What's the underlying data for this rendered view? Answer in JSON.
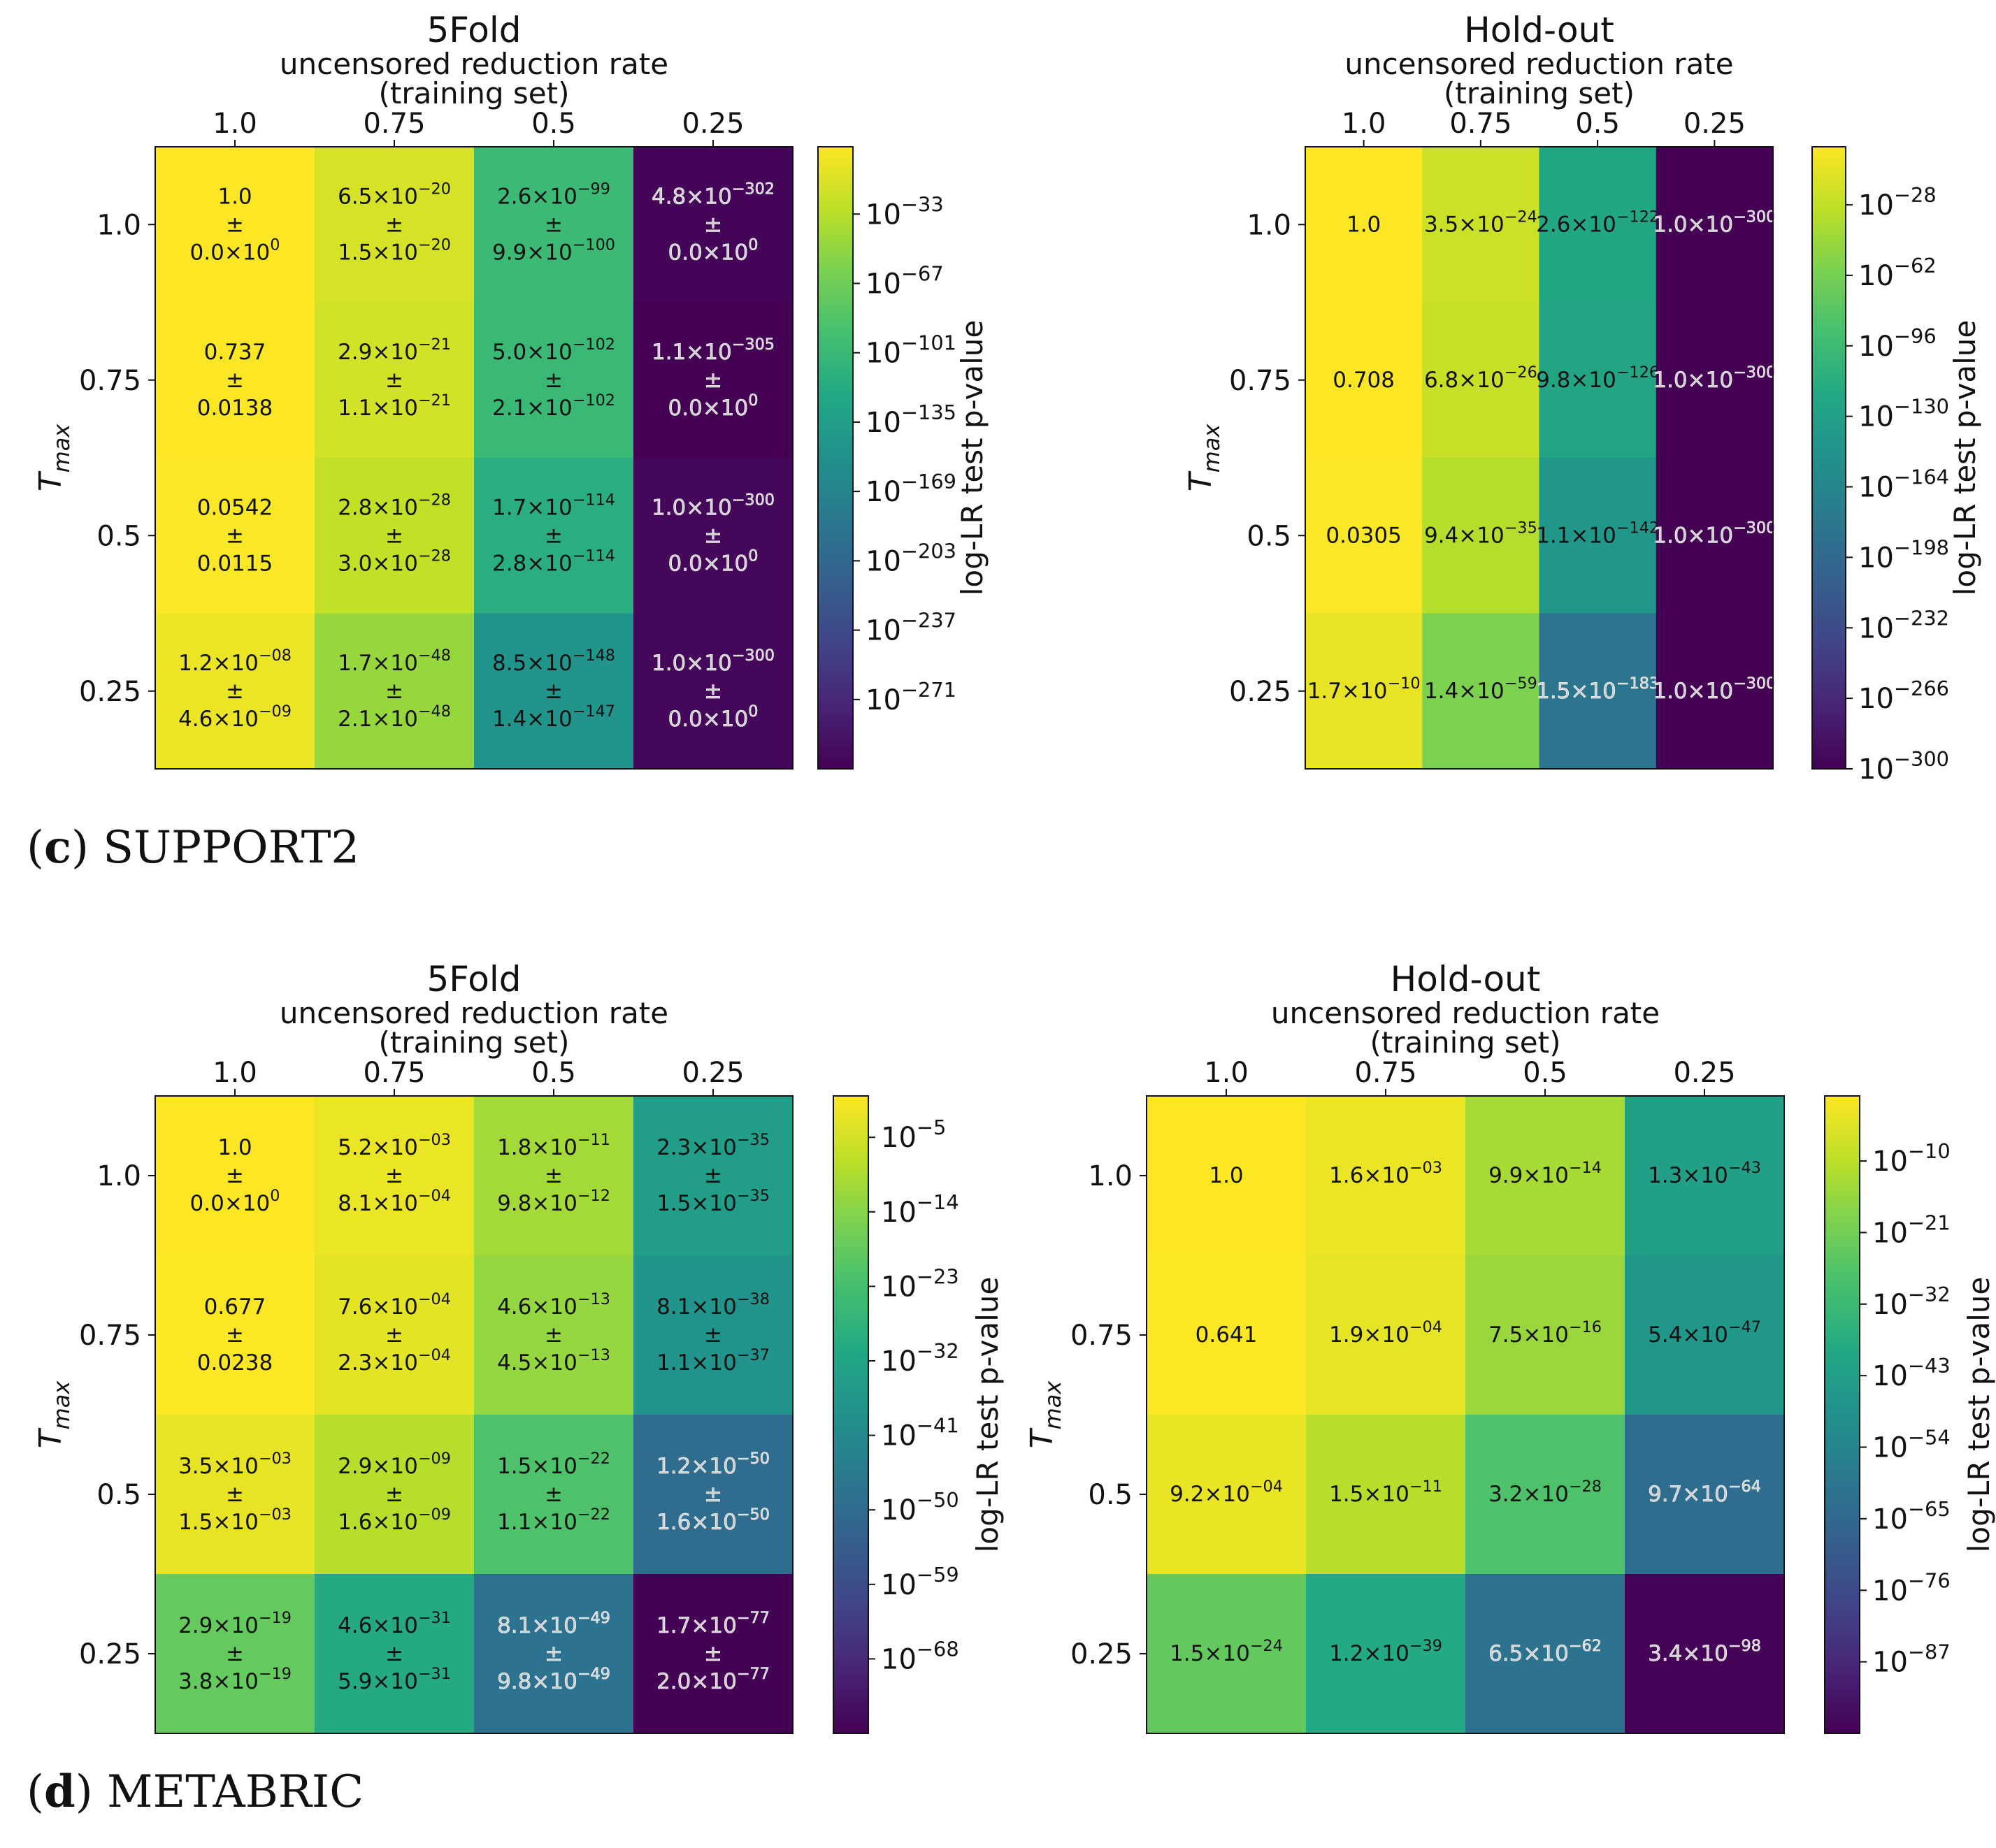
{
  "captions": [
    {
      "letter": "c",
      "name": "SUPPORT2"
    },
    {
      "letter": "d",
      "name": "METABRIC"
    }
  ],
  "chart_data": [
    {
      "type": "heatmap",
      "title": "5Fold",
      "xlabel": "uncensored reduction rate",
      "xlabel2": "(training set)",
      "ylabel": "T_max",
      "ylabel_main": "T",
      "ylabel_sub": "max",
      "x_ticks": [
        "1.0",
        "0.75",
        "0.5",
        "0.25"
      ],
      "y_ticks": [
        "1.0",
        "0.75",
        "0.5",
        "0.25"
      ],
      "colorbar_label": "log-LR test p-value",
      "colorbar_ticks": [
        "10^{−33}",
        "10^{−67}",
        "10^{−101}",
        "10^{−135}",
        "10^{−169}",
        "10^{−203}",
        "10^{−237}",
        "10^{−271}"
      ],
      "colorbar_exponents": [
        -33,
        -67,
        -101,
        -135,
        -169,
        -203,
        -237,
        -271
      ],
      "log10_range": [
        -305,
        0
      ],
      "cells": [
        [
          {
            "mean": "1.0",
            "std": "0.0×10^{0}",
            "log10": 0
          },
          {
            "mean": "6.5×10^{−20}",
            "std": "1.5×10^{−20}",
            "log10": -19.2
          },
          {
            "mean": "2.6×10^{−99}",
            "std": "9.9×10^{−100}",
            "log10": -98.6
          },
          {
            "mean": "4.8×10^{−302}",
            "std": "0.0×10^{0}",
            "log10": -301.3
          }
        ],
        [
          {
            "mean": "0.737",
            "std": "0.0138",
            "log10": -0.13
          },
          {
            "mean": "2.9×10^{−21}",
            "std": "1.1×10^{−21}",
            "log10": -20.5
          },
          {
            "mean": "5.0×10^{−102}",
            "std": "2.1×10^{−102}",
            "log10": -101.3
          },
          {
            "mean": "1.1×10^{−305}",
            "std": "0.0×10^{0}",
            "log10": -305
          }
        ],
        [
          {
            "mean": "0.0542",
            "std": "0.0115",
            "log10": -1.27
          },
          {
            "mean": "2.8×10^{−28}",
            "std": "3.0×10^{−28}",
            "log10": -27.6
          },
          {
            "mean": "1.7×10^{−114}",
            "std": "2.8×10^{−114}",
            "log10": -113.8
          },
          {
            "mean": "1.0×10^{−300}",
            "std": "0.0×10^{0}",
            "log10": -300
          }
        ],
        [
          {
            "mean": "1.2×10^{−08}",
            "std": "4.6×10^{−09}",
            "log10": -7.9
          },
          {
            "mean": "1.7×10^{−48}",
            "std": "2.1×10^{−48}",
            "log10": -47.8
          },
          {
            "mean": "8.5×10^{−148}",
            "std": "1.4×10^{−147}",
            "log10": -147.1
          },
          {
            "mean": "1.0×10^{−300}",
            "std": "0.0×10^{0}",
            "log10": -300
          }
        ]
      ]
    },
    {
      "type": "heatmap",
      "title": "Hold-out",
      "xlabel": "uncensored reduction rate",
      "xlabel2": "(training set)",
      "ylabel": "T_max",
      "ylabel_main": "T",
      "ylabel_sub": "max",
      "x_ticks": [
        "1.0",
        "0.75",
        "0.5",
        "0.25"
      ],
      "y_ticks": [
        "1.0",
        "0.75",
        "0.5",
        "0.25"
      ],
      "colorbar_label": "log-LR test p-value",
      "colorbar_ticks": [
        "10^{−28}",
        "10^{−62}",
        "10^{−96}",
        "10^{−130}",
        "10^{−164}",
        "10^{−198}",
        "10^{−232}",
        "10^{−266}",
        "10^{−300}"
      ],
      "colorbar_exponents": [
        -28,
        -62,
        -96,
        -130,
        -164,
        -198,
        -232,
        -266,
        -300
      ],
      "log10_range": [
        -300,
        0
      ],
      "cells": [
        [
          {
            "mean": "1.0",
            "std": "",
            "log10": 0
          },
          {
            "mean": "3.5×10^{−24}",
            "std": "",
            "log10": -23.5
          },
          {
            "mean": "2.6×10^{−122}",
            "std": "",
            "log10": -121.6
          },
          {
            "mean": "1.0×10^{−300}",
            "std": "",
            "log10": -300
          }
        ],
        [
          {
            "mean": "0.708",
            "std": "",
            "log10": -0.15
          },
          {
            "mean": "6.8×10^{−26}",
            "std": "",
            "log10": -25.2
          },
          {
            "mean": "9.8×10^{−126}",
            "std": "",
            "log10": -125
          },
          {
            "mean": "1.0×10^{−300}",
            "std": "",
            "log10": -300
          }
        ],
        [
          {
            "mean": "0.0305",
            "std": "",
            "log10": -1.52
          },
          {
            "mean": "9.4×10^{−35}",
            "std": "",
            "log10": -34
          },
          {
            "mean": "1.1×10^{−142}",
            "std": "",
            "log10": -142
          },
          {
            "mean": "1.0×10^{−300}",
            "std": "",
            "log10": -300
          }
        ],
        [
          {
            "mean": "1.7×10^{−10}",
            "std": "",
            "log10": -9.8
          },
          {
            "mean": "1.4×10^{−59}",
            "std": "",
            "log10": -58.9
          },
          {
            "mean": "1.5×10^{−183}",
            "std": "",
            "log10": -182.8
          },
          {
            "mean": "1.0×10^{−300}",
            "std": "",
            "log10": -300
          }
        ]
      ]
    },
    {
      "type": "heatmap",
      "title": "5Fold",
      "xlabel": "uncensored reduction rate",
      "xlabel2": "(training set)",
      "ylabel": "T_max",
      "ylabel_main": "T",
      "ylabel_sub": "max",
      "x_ticks": [
        "1.0",
        "0.75",
        "0.5",
        "0.25"
      ],
      "y_ticks": [
        "1.0",
        "0.75",
        "0.5",
        "0.25"
      ],
      "colorbar_label": "log-LR test p-value",
      "colorbar_ticks": [
        "10^{−5}",
        "10^{−14}",
        "10^{−23}",
        "10^{−32}",
        "10^{−41}",
        "10^{−50}",
        "10^{−59}",
        "10^{−68}"
      ],
      "colorbar_exponents": [
        -5,
        -14,
        -23,
        -32,
        -41,
        -50,
        -59,
        -68
      ],
      "log10_range": [
        -77,
        0
      ],
      "cells": [
        [
          {
            "mean": "1.0",
            "std": "0.0×10^{0}",
            "log10": 0
          },
          {
            "mean": "5.2×10^{−03}",
            "std": "8.1×10^{−04}",
            "log10": -2.3
          },
          {
            "mean": "1.8×10^{−11}",
            "std": "9.8×10^{−12}",
            "log10": -10.7
          },
          {
            "mean": "2.3×10^{−35}",
            "std": "1.5×10^{−35}",
            "log10": -34.6
          }
        ],
        [
          {
            "mean": "0.677",
            "std": "0.0238",
            "log10": -0.17
          },
          {
            "mean": "7.6×10^{−04}",
            "std": "2.3×10^{−04}",
            "log10": -3.1
          },
          {
            "mean": "4.6×10^{−13}",
            "std": "4.5×10^{−13}",
            "log10": -12.3
          },
          {
            "mean": "8.1×10^{−38}",
            "std": "1.1×10^{−37}",
            "log10": -37.1
          }
        ],
        [
          {
            "mean": "3.5×10^{−03}",
            "std": "1.5×10^{−03}",
            "log10": -2.5
          },
          {
            "mean": "2.9×10^{−09}",
            "std": "1.6×10^{−09}",
            "log10": -8.5
          },
          {
            "mean": "1.5×10^{−22}",
            "std": "1.1×10^{−22}",
            "log10": -21.8
          },
          {
            "mean": "1.2×10^{−50}",
            "std": "1.6×10^{−50}",
            "log10": -49.9
          }
        ],
        [
          {
            "mean": "2.9×10^{−19}",
            "std": "3.8×10^{−19}",
            "log10": -18.5
          },
          {
            "mean": "4.6×10^{−31}",
            "std": "5.9×10^{−31}",
            "log10": -30.3
          },
          {
            "mean": "8.1×10^{−49}",
            "std": "9.8×10^{−49}",
            "log10": -48.1
          },
          {
            "mean": "1.7×10^{−77}",
            "std": "2.0×10^{−77}",
            "log10": -76.8
          }
        ]
      ]
    },
    {
      "type": "heatmap",
      "title": "Hold-out",
      "xlabel": "uncensored reduction rate",
      "xlabel2": "(training set)",
      "ylabel": "T_max",
      "ylabel_main": "T",
      "ylabel_sub": "max",
      "x_ticks": [
        "1.0",
        "0.75",
        "0.5",
        "0.25"
      ],
      "y_ticks": [
        "1.0",
        "0.75",
        "0.5",
        "0.25"
      ],
      "colorbar_label": "log-LR test p-value",
      "colorbar_ticks": [
        "10^{−10}",
        "10^{−21}",
        "10^{−32}",
        "10^{−43}",
        "10^{−54}",
        "10^{−65}",
        "10^{−76}",
        "10^{−87}"
      ],
      "colorbar_exponents": [
        -10,
        -21,
        -32,
        -43,
        -54,
        -65,
        -76,
        -87
      ],
      "log10_range": [
        -98,
        0
      ],
      "cells": [
        [
          {
            "mean": "1.0",
            "std": "",
            "log10": 0
          },
          {
            "mean": "1.6×10^{−03}",
            "std": "",
            "log10": -2.8
          },
          {
            "mean": "9.9×10^{−14}",
            "std": "",
            "log10": -13
          },
          {
            "mean": "1.3×10^{−43}",
            "std": "",
            "log10": -42.9
          }
        ],
        [
          {
            "mean": "0.641",
            "std": "",
            "log10": -0.19
          },
          {
            "mean": "1.9×10^{−04}",
            "std": "",
            "log10": -3.7
          },
          {
            "mean": "7.5×10^{−16}",
            "std": "",
            "log10": -15.1
          },
          {
            "mean": "5.4×10^{−47}",
            "std": "",
            "log10": -46.3
          }
        ],
        [
          {
            "mean": "9.2×10^{−04}",
            "std": "",
            "log10": -3
          },
          {
            "mean": "1.5×10^{−11}",
            "std": "",
            "log10": -10.8
          },
          {
            "mean": "3.2×10^{−28}",
            "std": "",
            "log10": -27.5
          },
          {
            "mean": "9.7×10^{−64}",
            "std": "",
            "log10": -63
          }
        ],
        [
          {
            "mean": "1.5×10^{−24}",
            "std": "",
            "log10": -23.8
          },
          {
            "mean": "1.2×10^{−39}",
            "std": "",
            "log10": -38.9
          },
          {
            "mean": "6.5×10^{−62}",
            "std": "",
            "log10": -61.2
          },
          {
            "mean": "3.4×10^{−98}",
            "std": "",
            "log10": -97.5
          }
        ]
      ]
    }
  ]
}
